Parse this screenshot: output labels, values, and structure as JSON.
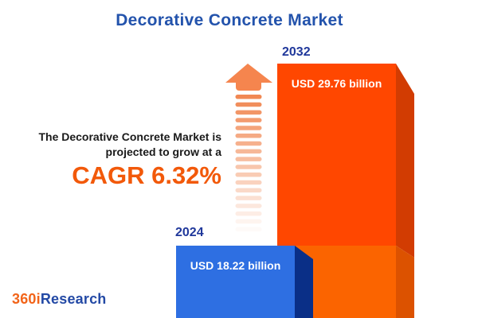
{
  "title": "Decorative Concrete Market",
  "description": {
    "line1": "The Decorative Concrete Market is",
    "line2": "projected to grow at a",
    "cagr": "CAGR 6.32%"
  },
  "chart_data": {
    "type": "bar",
    "title": "Decorative Concrete Market",
    "categories": [
      "2024",
      "2032"
    ],
    "values": [
      18.22,
      29.76
    ],
    "unit": "USD billion",
    "value_labels": [
      "USD 18.22 billion",
      "USD 29.76 billion"
    ],
    "cagr_percent": 6.32,
    "series_colors": [
      "#2E6FE2",
      "#FF4700"
    ],
    "legend": "none",
    "axes": "none"
  },
  "logo": {
    "part1": "360i",
    "part2": "Research"
  },
  "colors": {
    "title_blue": "#2353AC",
    "year_navy": "#20389B",
    "cagr_orange": "#F2590A",
    "arrow_salmon": "#F0824A",
    "bar_2024_face": "#2E6FE2",
    "bar_2024_bevel": "#0A2F87",
    "bar_2032_face_top": "#FF4700",
    "bar_2032_face_bottom": "#FB6400",
    "bar_2032_bevel_top": "#D23C02",
    "bar_2032_bevel_bottom": "#DC5200",
    "logo_orange": "#F26419",
    "logo_blue": "#2349A5",
    "background": "#FFFFFF"
  }
}
